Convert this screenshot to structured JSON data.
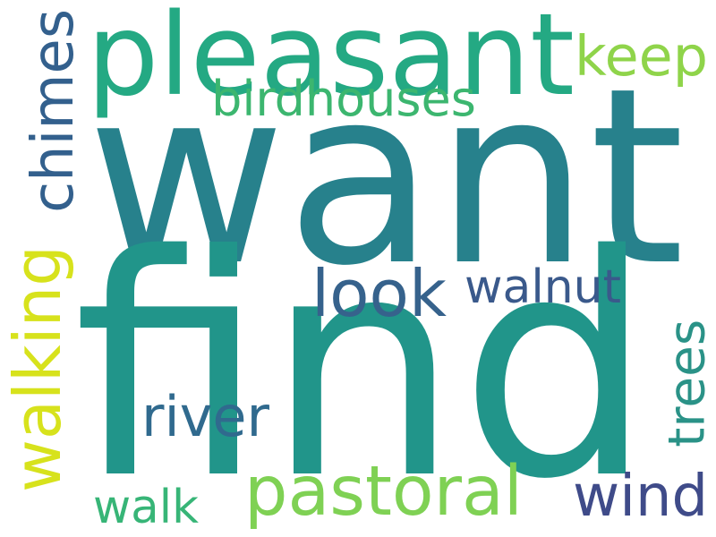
{
  "words": [
    {
      "key": "want",
      "text": "want",
      "color": "#27818c"
    },
    {
      "key": "find",
      "text": "find",
      "color": "#21958a"
    },
    {
      "key": "pleasant",
      "text": "pleasant",
      "color": "#24a983"
    },
    {
      "key": "keep",
      "text": "keep",
      "color": "#8fd44a"
    },
    {
      "key": "birdhouses",
      "text": "birdhouses",
      "color": "#3cb66f"
    },
    {
      "key": "chimes",
      "text": "chimes",
      "color": "#33608d"
    },
    {
      "key": "walking",
      "text": "walking",
      "color": "#d7e21c"
    },
    {
      "key": "look",
      "text": "look",
      "color": "#36628c"
    },
    {
      "key": "walnut",
      "text": "walnut",
      "color": "#3a598b"
    },
    {
      "key": "trees",
      "text": "trees",
      "color": "#2a9287"
    },
    {
      "key": "river",
      "text": "river",
      "color": "#306a8e"
    },
    {
      "key": "pastoral",
      "text": "pastoral",
      "color": "#7fd154"
    },
    {
      "key": "wind",
      "text": "wind",
      "color": "#3f4b89"
    },
    {
      "key": "walk",
      "text": "walk",
      "color": "#37b577"
    }
  ]
}
